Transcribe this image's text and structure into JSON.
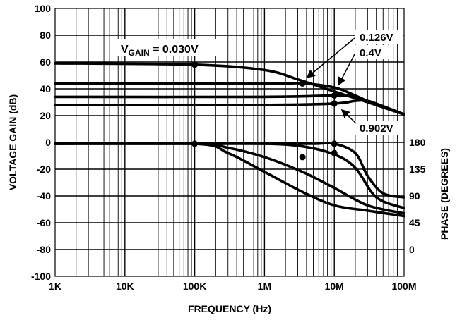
{
  "chart_data": {
    "type": "line",
    "x_scale": "log",
    "xlim": [
      1000,
      100000000
    ],
    "ylim": [
      -100,
      100
    ],
    "grid": true,
    "x_ticks": [
      {
        "v": 1000,
        "label": "1K"
      },
      {
        "v": 10000,
        "label": "10K"
      },
      {
        "v": 100000,
        "label": "100K"
      },
      {
        "v": 1000000,
        "label": "1M"
      },
      {
        "v": 10000000,
        "label": "10M"
      },
      {
        "v": 100000000,
        "label": "100M"
      }
    ],
    "y_ticks": [
      {
        "v": 100,
        "label": "100"
      },
      {
        "v": 80,
        "label": "80"
      },
      {
        "v": 60,
        "label": "60"
      },
      {
        "v": 40,
        "label": "40"
      },
      {
        "v": 20,
        "label": "20"
      },
      {
        "v": 0,
        "label": "0"
      },
      {
        "v": -20,
        "label": "-20"
      },
      {
        "v": -40,
        "label": "-40"
      },
      {
        "v": -60,
        "label": "-60"
      },
      {
        "v": -80,
        "label": "-80"
      },
      {
        "v": -100,
        "label": "-100"
      }
    ],
    "y2_ticks": [
      {
        "v": 0,
        "label": "180"
      },
      {
        "v": -20,
        "label": "135"
      },
      {
        "v": -40,
        "label": "90"
      },
      {
        "v": -60,
        "label": "45"
      },
      {
        "v": -80,
        "label": "0"
      }
    ],
    "xlabel": "FREQUENCY (Hz)",
    "ylabel": "VOLTAGE GAIN (dB)",
    "y2label": "PHASE (DEGREES)",
    "annotations": {
      "vgain_main": "V",
      "vgain_sub": "GAIN",
      "vgain_rest": " = 0.030V",
      "label_0126": "0.126V",
      "label_04": "0.4V",
      "label_0902": "0.902V"
    },
    "gain_series": [
      {
        "x": [
          1000,
          100000,
          1000000,
          3000000,
          10000000,
          30000000,
          100000000
        ],
        "y": [
          59,
          58,
          54,
          47,
          38,
          30,
          21
        ]
      },
      {
        "x": [
          1000,
          1000000,
          3500000,
          10000000,
          20000000,
          40000000,
          100000000
        ],
        "y": [
          44,
          44,
          44,
          41,
          35,
          28,
          21
        ]
      },
      {
        "x": [
          1000,
          1000000,
          10000000,
          20000000,
          40000000,
          100000000
        ],
        "y": [
          34,
          34,
          35,
          34,
          28,
          21
        ]
      },
      {
        "x": [
          1000,
          1000000,
          10000000,
          20000000,
          30000000,
          50000000,
          100000000
        ],
        "y": [
          28,
          28,
          29,
          31,
          31,
          27,
          21
        ]
      }
    ],
    "phase_series": [
      {
        "x": [
          1000,
          100000,
          300000,
          1000000,
          3500000,
          10000000,
          30000000,
          100000000
        ],
        "y": [
          -1,
          -1,
          -8,
          -22,
          -37,
          -47,
          -51,
          -55
        ]
      },
      {
        "x": [
          1000,
          100000,
          300000,
          1000000,
          3500000,
          10000000,
          30000000,
          100000000
        ],
        "y": [
          -1,
          -1,
          -4,
          -11,
          -22,
          -34,
          -47,
          -53
        ]
      },
      {
        "x": [
          1000,
          100000,
          1000000,
          3500000,
          10000000,
          20000000,
          40000000,
          100000000
        ],
        "y": [
          -1,
          -1,
          -1,
          -3,
          -9,
          -19,
          -41,
          -49
        ]
      },
      {
        "x": [
          1000,
          100000,
          1000000,
          5000000,
          10000000,
          20000000,
          30000000,
          50000000,
          100000000
        ],
        "y": [
          -1,
          -1,
          -1,
          -1,
          -1,
          -8,
          -25,
          -38,
          -41
        ]
      }
    ],
    "markers": [
      {
        "x": 100000,
        "y": 58
      },
      {
        "x": 3500000,
        "y": 44
      },
      {
        "x": 10000000,
        "y": 35
      },
      {
        "x": 10000000,
        "y": 29
      },
      {
        "x": 100000,
        "y": -1
      },
      {
        "x": 3500000,
        "y": -11
      },
      {
        "x": 10000000,
        "y": -1
      },
      {
        "x": 10000000,
        "y": -8
      }
    ]
  }
}
